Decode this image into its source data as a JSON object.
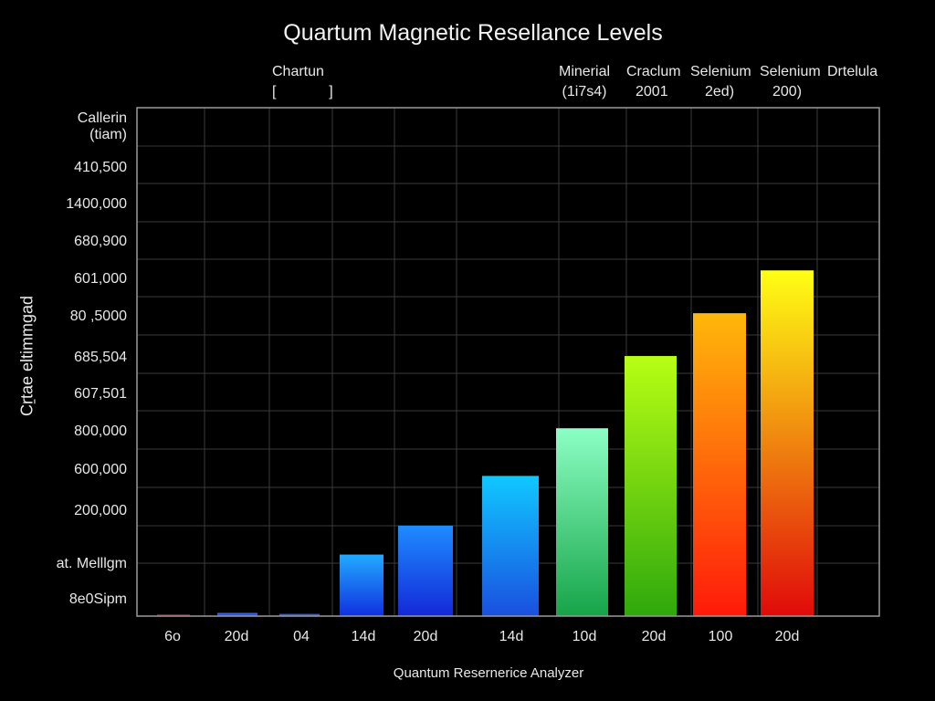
{
  "chart_data": {
    "type": "bar",
    "title": "Quartum Magnetic Resellance Levels",
    "xlabel": "Quantum Resernerice Analyzer",
    "ylabel": "Cṟtae eltimmgad",
    "categories": [
      "6o",
      "20d",
      "04",
      "14d",
      "20d",
      "14d",
      "10d",
      "20d",
      "100",
      "20d"
    ],
    "series": [
      {
        "values": [
          0.3,
          0.6,
          0.4,
          11.5,
          16.9,
          26.2,
          35.1,
          48.6,
          56.6,
          64.6
        ]
      }
    ],
    "ylim": [
      0,
      95
    ],
    "ytick_labels": [
      "Callerin",
      "(tiam)",
      "410,500",
      "1400,000",
      "680,900",
      "601,000",
      "80 ,5000",
      "685,504",
      "607,501",
      "800,000",
      "600,000",
      "200,000",
      "at. Melllgm",
      "8e0Sipm"
    ],
    "legend": [
      {
        "line1": "Chartun",
        "line2": "[             ]"
      },
      {
        "line1": "Minerial",
        "line2": "(1i7s4)"
      },
      {
        "line1": "Craclum",
        "line2": "2001"
      },
      {
        "line1": "Selenium",
        "line2": "2ed)"
      },
      {
        "line1": "Selenium",
        "line2": "200)"
      },
      {
        "line1": "Drtelula",
        "line2": ""
      }
    ],
    "grid": true,
    "bar_colors": [
      [
        "#d41a1a",
        "#8a0f0f"
      ],
      [
        "#3a6cff",
        "#1f3fbf"
      ],
      [
        "#3a6cff",
        "#1f3fbf"
      ],
      [
        "#22aaff",
        "#1030e0"
      ],
      [
        "#1e8cff",
        "#1428d8"
      ],
      [
        "#10c8ff",
        "#1a4fe0"
      ],
      [
        "#8cffc4",
        "#16a448"
      ],
      [
        "#b8ff14",
        "#2ea80c"
      ],
      [
        "#ffb80a",
        "#ff1a0a"
      ],
      [
        "#ffff14",
        "#e00a0a"
      ]
    ]
  }
}
